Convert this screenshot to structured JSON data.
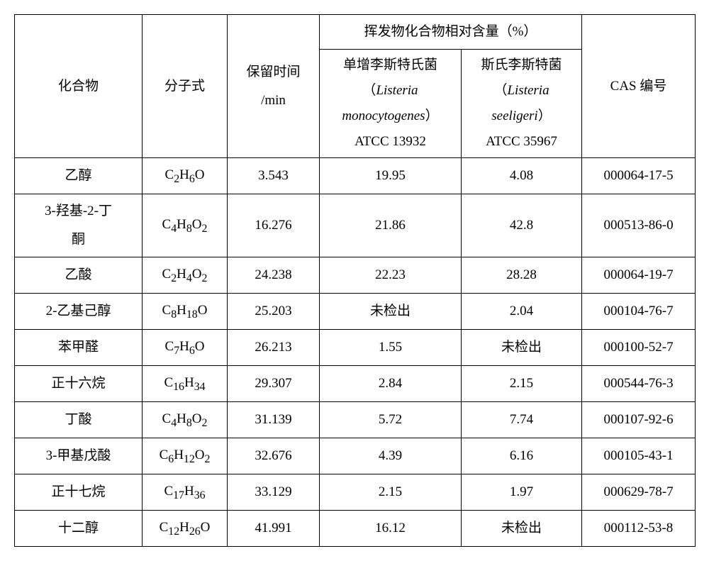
{
  "table": {
    "head": {
      "compound": "化合物",
      "formula": "分子式",
      "retention_label1": "保留时间",
      "retention_label2": "/min",
      "voc_header": "挥发物化合物相对含量（%）",
      "sp1_line1": "单增李斯特氏菌",
      "sp1_line2a": "（",
      "sp1_line2b": "Listeria",
      "sp1_line3": "monocytogenes",
      "sp1_line3b": "）",
      "sp1_line4": "ATCC 13932",
      "sp2_line1": "斯氏李斯特菌",
      "sp2_line2a": "（",
      "sp2_line2b": "Listeria",
      "sp2_line3": "seeligeri",
      "sp2_line3b": "）",
      "sp2_line4": "ATCC 35967",
      "cas": "CAS 编号"
    },
    "rows": [
      {
        "compound": "乙醇",
        "formula_html": "C<sub>2</sub>H<sub>6</sub>O",
        "rt": "3.543",
        "v1": "19.95",
        "v2": "4.08",
        "cas": "000064-17-5"
      },
      {
        "compound_line1": "3-羟基-2-丁",
        "compound_line2": "酮",
        "formula_html": "C<sub>4</sub>H<sub>8</sub>O<sub>2</sub>",
        "rt": "16.276",
        "v1": "21.86",
        "v2": "42.8",
        "cas": "000513-86-0"
      },
      {
        "compound": "乙酸",
        "formula_html": "C<sub>2</sub>H<sub>4</sub>O<sub>2</sub>",
        "rt": "24.238",
        "v1": "22.23",
        "v2": "28.28",
        "cas": "000064-19-7"
      },
      {
        "compound": "2-乙基己醇",
        "formula_html": "C<sub>8</sub>H<sub>18</sub>O",
        "rt": "25.203",
        "v1": "未检出",
        "v2": "2.04",
        "cas": "000104-76-7"
      },
      {
        "compound": "苯甲醛",
        "formula_html": "C<sub>7</sub>H<sub>6</sub>O",
        "rt": "26.213",
        "v1": "1.55",
        "v2": "未检出",
        "cas": "000100-52-7"
      },
      {
        "compound": "正十六烷",
        "formula_html": "C<sub>16</sub>H<sub>34</sub>",
        "rt": "29.307",
        "v1": "2.84",
        "v2": "2.15",
        "cas": "000544-76-3"
      },
      {
        "compound": "丁酸",
        "formula_html": "C<sub>4</sub>H<sub>8</sub>O<sub>2</sub>",
        "rt": "31.139",
        "v1": "5.72",
        "v2": "7.74",
        "cas": "000107-92-6"
      },
      {
        "compound": "3-甲基戊酸",
        "formula_html": "C<sub>6</sub>H<sub>12</sub>O<sub>2</sub>",
        "rt": "32.676",
        "v1": "4.39",
        "v2": "6.16",
        "cas": "000105-43-1"
      },
      {
        "compound": "正十七烷",
        "formula_html": "C<sub>17</sub>H<sub>36</sub>",
        "rt": "33.129",
        "v1": "2.15",
        "v2": "1.97",
        "cas": "000629-78-7"
      },
      {
        "compound": "十二醇",
        "formula_html": "C<sub>12</sub>H<sub>26</sub>O",
        "rt": "41.991",
        "v1": "16.12",
        "v2": "未检出",
        "cas": "000112-53-8"
      }
    ]
  },
  "style": {
    "font_family": "SimSun",
    "font_size_pt": 14,
    "border_color": "#000000",
    "background_color": "#ffffff",
    "text_color": "#000000"
  }
}
